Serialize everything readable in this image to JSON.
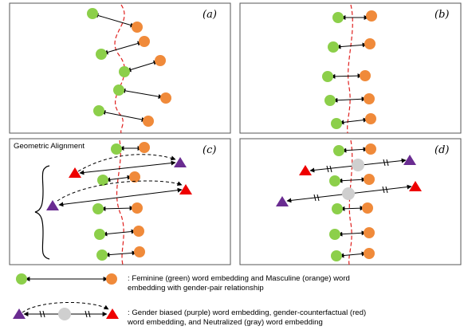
{
  "panels": {
    "a": {
      "label": "(a)"
    },
    "b": {
      "label": "(b)"
    },
    "c": {
      "label": "(c)",
      "title": "Geometric Alignment"
    },
    "d": {
      "label": "(d)"
    }
  },
  "legend": {
    "line1": {
      "l1": ": Feminine (green) word embedding and Masculine (orange) word",
      "l2": "embedding with gender-pair relationship"
    },
    "line2": {
      "l1": ": Gender biased (purple) word embedding, gender-counterfactual (red)",
      "l2": "word embedding, and Neutralized (gray) word embedding"
    }
  },
  "colors": {
    "feminine": "#8ccf4a",
    "masculine": "#f08a3a",
    "biased": "#6a2c91",
    "counterfactual": "#ee0000",
    "neutral": "#cfcfcf",
    "boundary": "#e0201e"
  }
}
